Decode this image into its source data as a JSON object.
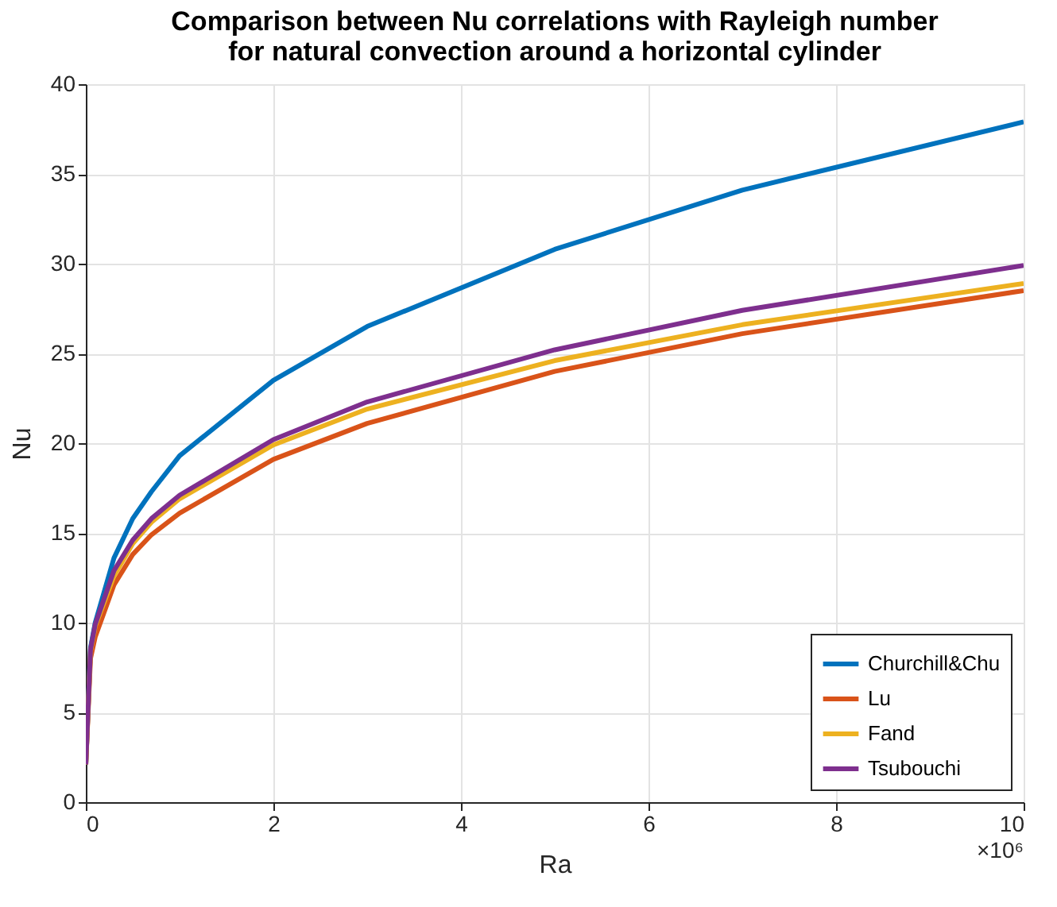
{
  "chart_data": {
    "type": "line",
    "title": "Comparison between Nu correlations with Rayleigh number\nfor natural convection around a horizontal cylinder",
    "xlabel": "Ra",
    "ylabel": "Nu",
    "annotations": [
      "×10⁶"
    ],
    "xlim": [
      0,
      10
    ],
    "xticks": [
      0,
      2,
      4,
      6,
      8,
      10
    ],
    "ylim": [
      0,
      40
    ],
    "yticks": [
      0,
      5,
      10,
      15,
      20,
      25,
      30,
      35,
      40
    ],
    "grid": true,
    "legend": "bottom right",
    "line_style": "solid",
    "marker": "none",
    "series": [
      {
        "name": "Churchill&Chu",
        "color": "#0072bd",
        "x": [
          0,
          0.05,
          0.1,
          0.3,
          0.5,
          0.7,
          1,
          2,
          3,
          5,
          7,
          10
        ],
        "values": [
          2.1,
          8.6,
          10.0,
          13.6,
          15.8,
          17.3,
          19.3,
          23.5,
          26.5,
          30.8,
          34.1,
          37.9
        ]
      },
      {
        "name": "Lu",
        "color": "#d95319",
        "x": [
          0,
          0.05,
          0.1,
          0.3,
          0.5,
          0.7,
          1,
          2,
          3,
          5,
          7,
          10
        ],
        "values": [
          2.1,
          8.0,
          9.2,
          12.1,
          13.8,
          14.9,
          16.1,
          19.1,
          21.1,
          24.0,
          26.1,
          28.5
        ]
      },
      {
        "name": "Fand",
        "color": "#edb120",
        "x": [
          0,
          0.05,
          0.1,
          0.3,
          0.5,
          0.7,
          1,
          2,
          3,
          5,
          7,
          10
        ],
        "values": [
          2.1,
          8.4,
          9.8,
          12.6,
          14.4,
          15.6,
          16.9,
          19.9,
          21.9,
          24.6,
          26.6,
          28.9
        ]
      },
      {
        "name": "Tsubouchi",
        "color": "#7e2f8e",
        "x": [
          0,
          0.05,
          0.1,
          0.3,
          0.5,
          0.7,
          1,
          2,
          3,
          5,
          7,
          10
        ],
        "values": [
          2.1,
          8.5,
          9.9,
          12.9,
          14.6,
          15.8,
          17.1,
          20.2,
          22.3,
          25.2,
          27.4,
          29.9
        ]
      }
    ]
  }
}
